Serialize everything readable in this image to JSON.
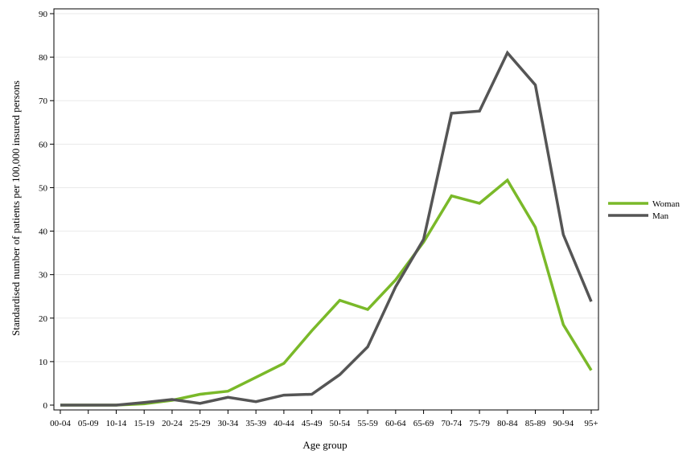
{
  "chart_data": {
    "type": "line",
    "title": "",
    "xlabel": "Age group",
    "ylabel": "Standardised number of patients per 100,000 insured persons",
    "ylim": [
      0,
      90
    ],
    "yticks": [
      0,
      10,
      20,
      30,
      40,
      50,
      60,
      70,
      80,
      90
    ],
    "grid": true,
    "legend_position": "right",
    "categories": [
      "00-04",
      "05-09",
      "10-14",
      "15-19",
      "20-24",
      "25-29",
      "30-34",
      "35-39",
      "40-44",
      "45-49",
      "50-54",
      "55-59",
      "60-64",
      "65-69",
      "70-74",
      "75-79",
      "80-84",
      "85-89",
      "90-94",
      "95+"
    ],
    "series": [
      {
        "name": "Woman",
        "color": "#7ab929",
        "values": [
          0,
          0,
          0,
          0.3,
          1.1,
          2.5,
          3.2,
          6.4,
          9.6,
          17.1,
          24.1,
          22.0,
          28.8,
          37.5,
          48.1,
          46.4,
          51.7,
          40.9,
          18.5,
          8.0
        ]
      },
      {
        "name": "Man",
        "color": "#555555",
        "values": [
          0,
          0,
          0,
          0.6,
          1.3,
          0.4,
          1.8,
          0.8,
          2.3,
          2.5,
          7.0,
          13.4,
          27.2,
          38.1,
          67.1,
          67.6,
          81.0,
          73.6,
          39.2,
          23.8
        ]
      }
    ]
  }
}
